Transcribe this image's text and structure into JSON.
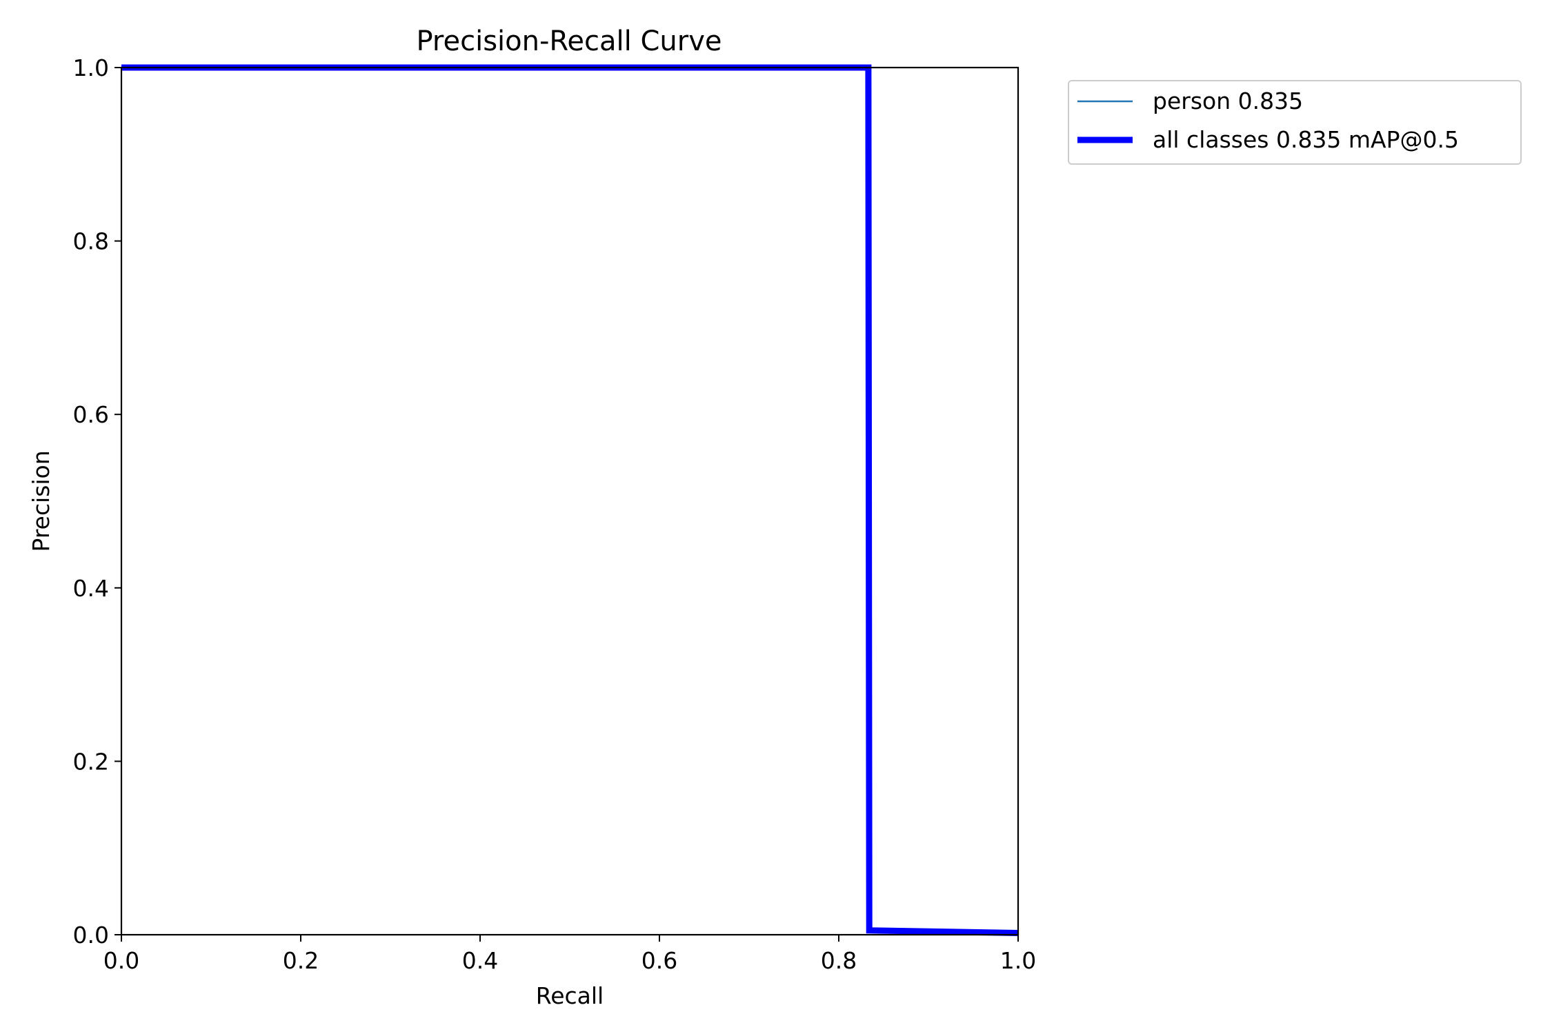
{
  "chart_data": {
    "type": "line",
    "title": "Precision-Recall Curve",
    "xlabel": "Recall",
    "ylabel": "Precision",
    "xlim": [
      0.0,
      1.0
    ],
    "ylim": [
      0.0,
      1.0
    ],
    "xticks": [
      "0.0",
      "0.2",
      "0.4",
      "0.6",
      "0.8",
      "1.0"
    ],
    "yticks": [
      "0.0",
      "0.2",
      "0.4",
      "0.6",
      "0.8",
      "1.0"
    ],
    "grid": false,
    "legend_position": "outside-top-right",
    "series": [
      {
        "name": "person 0.835",
        "color": "#1f77b4",
        "x": [
          0.0,
          0.833,
          0.834,
          1.0
        ],
        "y": [
          1.0,
          1.0,
          0.005,
          0.002
        ]
      },
      {
        "name": "all classes 0.835 mAP@0.5",
        "color": "#0000ff",
        "x": [
          0.0,
          0.833,
          0.834,
          1.0
        ],
        "y": [
          1.0,
          1.0,
          0.005,
          0.002
        ]
      }
    ]
  }
}
